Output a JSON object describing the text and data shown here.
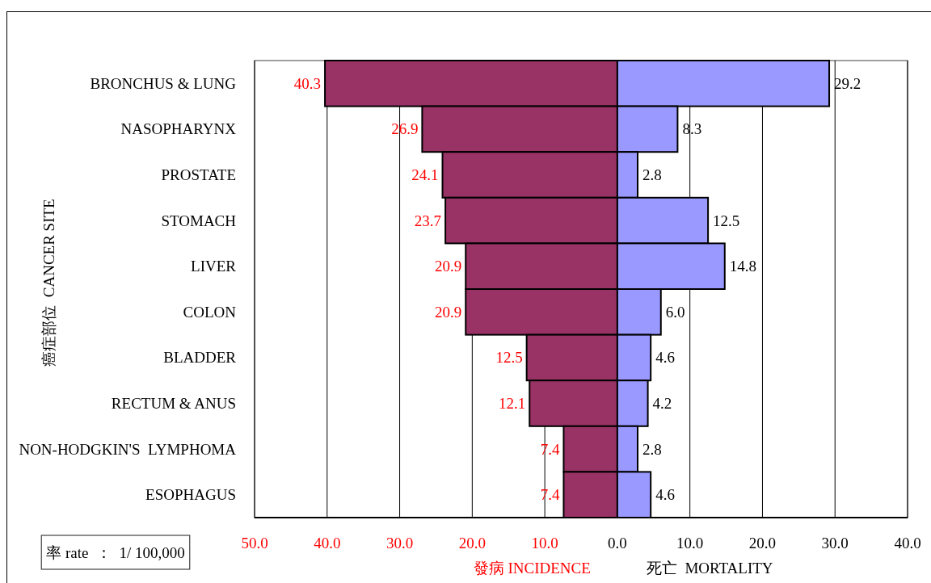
{
  "chart_data": [
    {
      "type": "bar",
      "orientation": "horizontal",
      "xlabel": "發病 INCIDENCE",
      "ylabel": "癌症部位  CANCER SITE",
      "categories": [
        "BRONCHUS & LUNG",
        "NASOPHARYNX",
        "PROSTATE",
        "STOMACH",
        "LIVER",
        "COLON",
        "BLADDER",
        "RECTUM & ANUS",
        "NON-HODGKIN'S  LYMPHOMA",
        "ESOPHAGUS"
      ],
      "values": [
        40.3,
        26.9,
        24.1,
        23.7,
        20.9,
        20.9,
        12.5,
        12.1,
        7.4,
        7.4
      ],
      "color": "#993366",
      "data_labels": true,
      "xlim": [
        50,
        0
      ],
      "xticks": [
        {
          "value": 50,
          "label": "50.0"
        },
        {
          "value": 40,
          "label": "40.0"
        },
        {
          "value": 30,
          "label": "30.0"
        },
        {
          "value": 20,
          "label": "20.0"
        },
        {
          "value": 10,
          "label": "10.0"
        }
      ],
      "grid": "x",
      "annotations": [
        "率 rate  ：  1/ 100,000"
      ]
    },
    {
      "type": "bar",
      "orientation": "horizontal",
      "xlabel": "死亡  MORTALITY",
      "categories": [
        null,
        null,
        null,
        null,
        null,
        null,
        null,
        null,
        null,
        null
      ],
      "values": [
        29.2,
        8.3,
        2.8,
        12.5,
        14.8,
        6.0,
        4.6,
        4.2,
        2.8,
        4.6
      ],
      "color": "#9999ff",
      "value_labels": [
        "29.2",
        "8.3",
        "2.8",
        "12.5",
        "14.8",
        "6.0",
        "4.6",
        "4.2",
        "2.8",
        "4.6"
      ],
      "xlim": [
        0,
        40
      ],
      "xticks": [
        {
          "value": 0,
          "label": "0.0"
        },
        {
          "value": 10,
          "label": "10.0"
        },
        {
          "value": 20,
          "label": "20.0"
        },
        {
          "value": 30,
          "label": "30.0"
        },
        {
          "value": 40,
          "label": "40.0"
        }
      ],
      "grid": "x",
      "tick_labels": "x"
    }
  ]
}
